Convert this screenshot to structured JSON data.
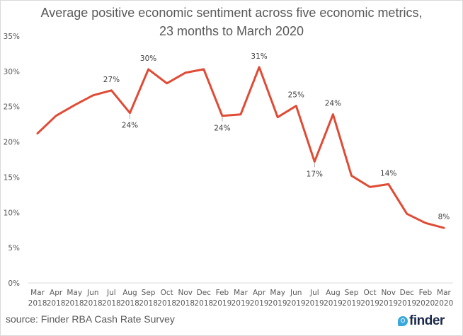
{
  "chart_data": {
    "type": "line",
    "title": "Average positive economic sentiment across five economic metrics,",
    "subtitle": "23 months to March 2020",
    "xlabel": "",
    "ylabel": "",
    "ylim": [
      0,
      35
    ],
    "yticks": [
      0,
      5,
      10,
      15,
      20,
      25,
      30,
      35
    ],
    "ytick_labels": [
      "0%",
      "5%",
      "10%",
      "15%",
      "20%",
      "25%",
      "30%",
      "35%"
    ],
    "grid": false,
    "legend": "none",
    "categories": [
      {
        "month": "Mar",
        "year": "2018"
      },
      {
        "month": "Apr",
        "year": "2018"
      },
      {
        "month": "May",
        "year": "2018"
      },
      {
        "month": "Jun",
        "year": "2018"
      },
      {
        "month": "Jul",
        "year": "2018"
      },
      {
        "month": "Aug",
        "year": "2018"
      },
      {
        "month": "Sep",
        "year": "2018"
      },
      {
        "month": "Oct",
        "year": "2018"
      },
      {
        "month": "Nov",
        "year": "2018"
      },
      {
        "month": "Dec",
        "year": "2018"
      },
      {
        "month": "Feb",
        "year": "2019"
      },
      {
        "month": "Mar",
        "year": "2019"
      },
      {
        "month": "Apr",
        "year": "2019"
      },
      {
        "month": "May",
        "year": "2019"
      },
      {
        "month": "Jun",
        "year": "2019"
      },
      {
        "month": "Jul",
        "year": "2019"
      },
      {
        "month": "Aug",
        "year": "2019"
      },
      {
        "month": "Sep",
        "year": "2019"
      },
      {
        "month": "Oct",
        "year": "2019"
      },
      {
        "month": "Nov",
        "year": "2019"
      },
      {
        "month": "Dec",
        "year": "2019"
      },
      {
        "month": "Feb",
        "year": "2020"
      },
      {
        "month": "Mar",
        "year": "2020"
      }
    ],
    "series": [
      {
        "name": "Average positive economic sentiment",
        "color": "#e04b35",
        "values": [
          21.2,
          23.7,
          25.2,
          26.6,
          27.3,
          24.1,
          30.3,
          28.3,
          29.8,
          30.3,
          23.7,
          23.9,
          30.6,
          23.5,
          25.1,
          17.2,
          23.9,
          15.2,
          13.6,
          14.0,
          9.8,
          8.5,
          7.8
        ]
      }
    ],
    "data_labels": [
      {
        "index": 4,
        "text": "27%",
        "position": "above",
        "leader": false
      },
      {
        "index": 5,
        "text": "24%",
        "position": "below",
        "leader": true
      },
      {
        "index": 6,
        "text": "30%",
        "position": "above",
        "leader": false
      },
      {
        "index": 10,
        "text": "24%",
        "position": "below",
        "leader": true
      },
      {
        "index": 12,
        "text": "31%",
        "position": "above",
        "leader": false
      },
      {
        "index": 14,
        "text": "25%",
        "position": "above",
        "leader": false
      },
      {
        "index": 15,
        "text": "17%",
        "position": "below",
        "leader": true
      },
      {
        "index": 16,
        "text": "24%",
        "position": "above",
        "leader": false
      },
      {
        "index": 19,
        "text": "14%",
        "position": "above",
        "leader": false
      },
      {
        "index": 22,
        "text": "8%",
        "position": "above",
        "leader": false
      }
    ]
  },
  "footer": {
    "source": "source: Finder RBA Cash Rate Survey",
    "logo_text": "finder",
    "logo_icon": "search-drop-icon",
    "logo_color": "#3aa8dd",
    "logo_text_color": "#1b2a4a"
  }
}
